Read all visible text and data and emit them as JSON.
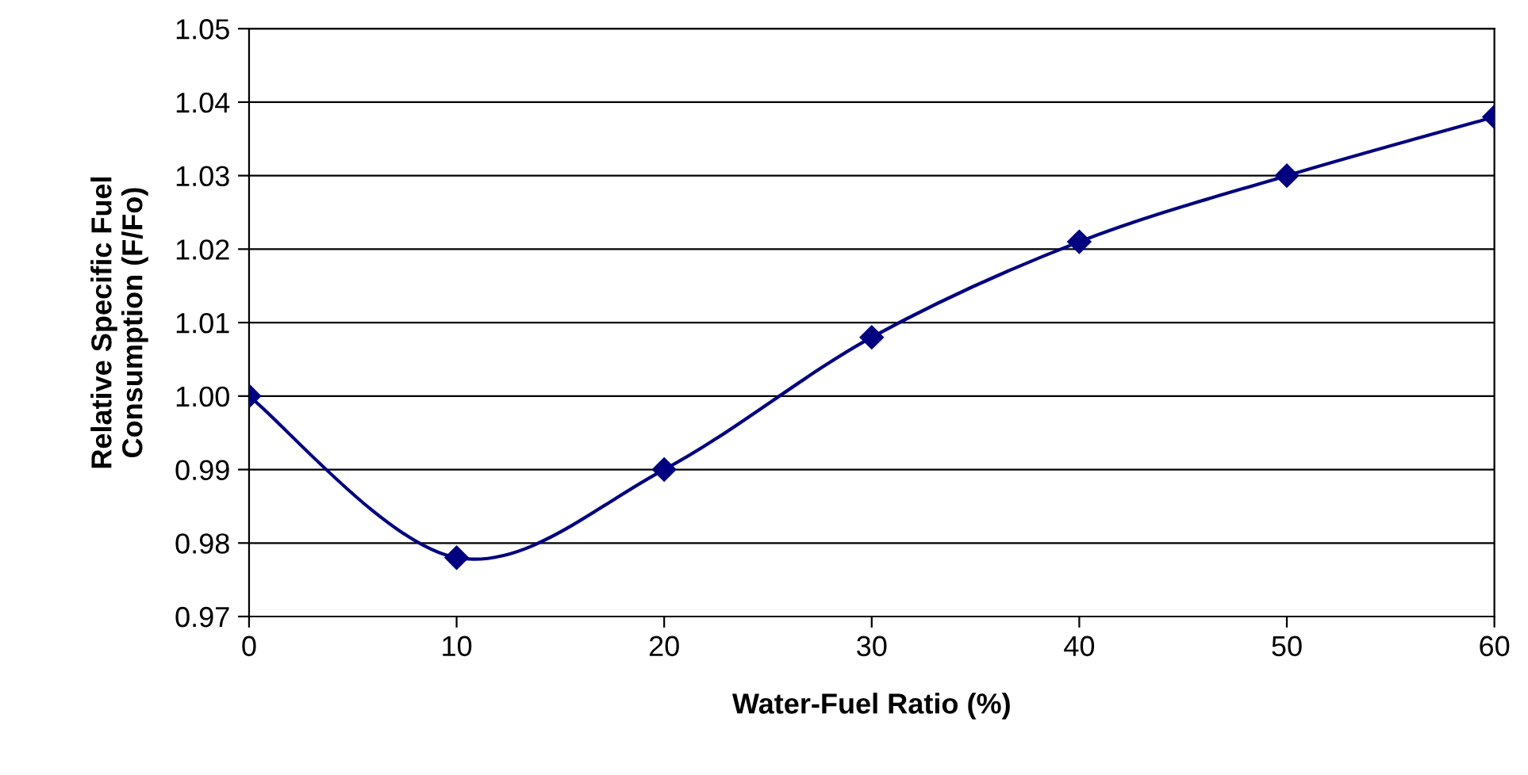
{
  "chart_data": {
    "type": "line",
    "xlabel": "Water-Fuel Ratio (%)",
    "ylabel": "Relative Specific Fuel\nConsumption (F/Fo)",
    "x": [
      0,
      10,
      20,
      30,
      40,
      50,
      60
    ],
    "series": [
      {
        "color": "#000080",
        "values": [
          1.0,
          0.978,
          0.99,
          1.008,
          1.021,
          1.03,
          1.038
        ]
      }
    ],
    "xlim": [
      0,
      60
    ],
    "xticks": [
      0,
      10,
      20,
      30,
      40,
      50,
      60
    ],
    "ylim": [
      0.97,
      1.05
    ],
    "yticks": [
      {
        "value": 0.97,
        "label": "0.97"
      },
      {
        "value": 0.98,
        "label": "0.98"
      },
      {
        "value": 0.99,
        "label": "0.99"
      },
      {
        "value": 1.0,
        "label": "1.00"
      },
      {
        "value": 1.01,
        "label": "1.01"
      },
      {
        "value": 1.02,
        "label": "1.02"
      },
      {
        "value": 1.03,
        "label": "1.03"
      },
      {
        "value": 1.04,
        "label": "1.04"
      },
      {
        "value": 1.05,
        "label": "1.05"
      }
    ],
    "grid": "y",
    "marker": "diamond",
    "line_style": "solid",
    "legend": false
  }
}
